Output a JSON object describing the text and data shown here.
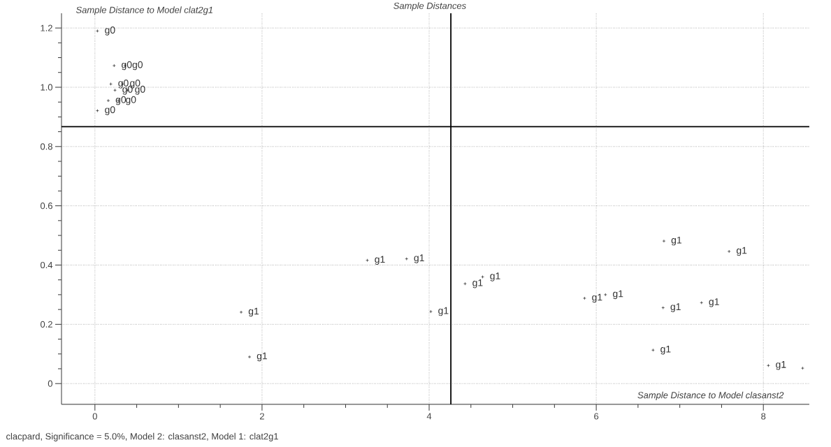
{
  "chart_data": {
    "type": "scatter",
    "title": "Sample Distances",
    "xlabel": "Sample Distance to Model clasanst2",
    "ylabel": "Sample Distance to Model clat2g1",
    "annotations": [
      "clacpard, Significance = 5.0%, Model 2: clasanst2, Model 1: clat2g1"
    ],
    "xlim": [
      -0.4,
      8.55
    ],
    "ylim": [
      -0.07,
      1.25
    ],
    "xticks": [
      0,
      2,
      4,
      6,
      8
    ],
    "yticks": [
      0,
      0.2,
      0.4,
      0.6,
      0.8,
      {
        "value": 1,
        "label": "1.0"
      },
      1.2
    ],
    "grid": true,
    "marker": "cross",
    "ref_lines": [
      {
        "axis": "x",
        "value": 4.26,
        "color": "#000000"
      },
      {
        "axis": "y",
        "value": 0.867,
        "color": "#000000"
      }
    ],
    "series": [
      {
        "color": "#000000",
        "x": [
          0.03,
          0.23,
          0.36,
          0.19,
          0.33,
          0.24,
          0.39,
          0.16,
          0.28,
          0.03,
          1.75,
          1.85,
          3.26,
          3.73,
          4.02,
          4.43,
          4.64,
          5.86,
          6.11,
          6.8,
          7.26,
          6.81,
          7.59,
          6.68,
          8.06,
          8.47
        ],
        "values": [
          1.19,
          1.073,
          1.073,
          1.011,
          1.011,
          0.99,
          0.99,
          0.955,
          0.955,
          0.921,
          0.241,
          0.09,
          0.416,
          0.421,
          0.243,
          0.337,
          0.36,
          0.288,
          0.3,
          0.256,
          0.273,
          0.481,
          0.446,
          0.113,
          0.061,
          0.052
        ],
        "value_labels": [
          "g0",
          "g0",
          "g0",
          "g0",
          "g0",
          "g0",
          "g0",
          "g0",
          "g0",
          "g0",
          "g1",
          "g1",
          "g1",
          "g1",
          "g1",
          "g1",
          "g1",
          "g1",
          "g1",
          "g1",
          "g1",
          "g1",
          "g1",
          "g1",
          "g1",
          null
        ]
      }
    ]
  }
}
